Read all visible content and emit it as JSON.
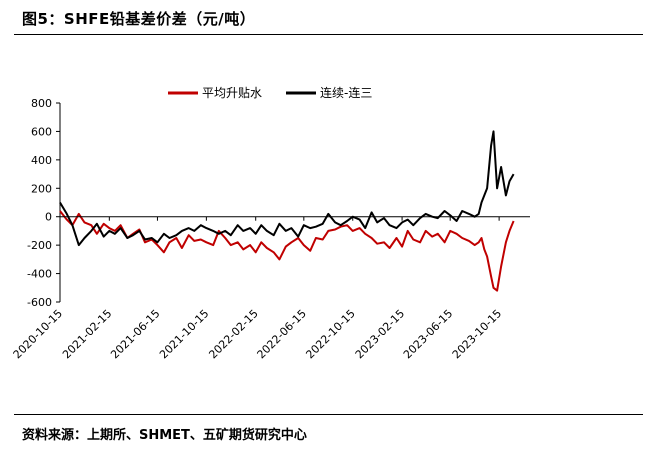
{
  "title": "图5：SHFE铅基差价差（元/吨）",
  "source": "资料来源：上期所、SHMET、五矿期货研究中心",
  "colors": {
    "series1": "#c00000",
    "series2": "#000000"
  },
  "chart_data": {
    "type": "line",
    "title": "",
    "xlabel": "",
    "ylabel": "",
    "ylim": [
      -600,
      800
    ],
    "yticks": [
      800,
      600,
      400,
      200,
      0,
      -200,
      -400,
      -600
    ],
    "ytick_labels": [
      "800",
      "600",
      "400",
      "200",
      "0",
      "-200",
      "-400",
      "-600"
    ],
    "xlim": [
      "2020-10-15",
      "2023-12-31"
    ],
    "xticks": [
      "2020-10-15",
      "2021-02-15",
      "2021-06-15",
      "2021-10-15",
      "2022-02-15",
      "2022-06-15",
      "2022-10-15",
      "2023-02-15",
      "2023-06-15",
      "2023-10-15"
    ],
    "legend_position": "top-center",
    "grid": false,
    "series": [
      {
        "name": "平均升贴水",
        "x": [
          "2020-10-15",
          "2020-11-01",
          "2020-11-15",
          "2020-12-01",
          "2020-12-15",
          "2021-01-01",
          "2021-01-15",
          "2021-02-01",
          "2021-02-15",
          "2021-03-01",
          "2021-03-15",
          "2021-04-01",
          "2021-04-15",
          "2021-05-01",
          "2021-05-15",
          "2021-06-01",
          "2021-06-15",
          "2021-07-01",
          "2021-07-15",
          "2021-08-01",
          "2021-08-15",
          "2021-09-01",
          "2021-09-15",
          "2021-10-01",
          "2021-10-15",
          "2021-11-01",
          "2021-11-15",
          "2021-12-01",
          "2021-12-15",
          "2022-01-01",
          "2022-01-15",
          "2022-02-01",
          "2022-02-15",
          "2022-03-01",
          "2022-03-15",
          "2022-04-01",
          "2022-04-15",
          "2022-05-01",
          "2022-05-15",
          "2022-06-01",
          "2022-06-15",
          "2022-07-01",
          "2022-07-15",
          "2022-08-01",
          "2022-08-15",
          "2022-09-01",
          "2022-09-15",
          "2022-10-01",
          "2022-10-15",
          "2022-11-01",
          "2022-11-15",
          "2022-12-01",
          "2022-12-15",
          "2023-01-01",
          "2023-01-15",
          "2023-02-01",
          "2023-02-15",
          "2023-03-01",
          "2023-03-15",
          "2023-04-01",
          "2023-04-15",
          "2023-05-01",
          "2023-05-15",
          "2023-06-01",
          "2023-06-15",
          "2023-07-01",
          "2023-07-15",
          "2023-08-01",
          "2023-08-15",
          "2023-08-25",
          "2023-09-01",
          "2023-09-08",
          "2023-09-15",
          "2023-09-25",
          "2023-10-01",
          "2023-10-10",
          "2023-10-20",
          "2023-11-01",
          "2023-11-10",
          "2023-11-20"
        ],
        "values": [
          40,
          -20,
          -60,
          20,
          -40,
          -60,
          -120,
          -50,
          -80,
          -100,
          -60,
          -150,
          -120,
          -90,
          -180,
          -160,
          -200,
          -250,
          -180,
          -150,
          -220,
          -130,
          -170,
          -160,
          -180,
          -200,
          -100,
          -150,
          -200,
          -180,
          -230,
          -200,
          -250,
          -180,
          -220,
          -250,
          -300,
          -210,
          -180,
          -150,
          -200,
          -240,
          -150,
          -160,
          -100,
          -90,
          -70,
          -60,
          -100,
          -80,
          -120,
          -150,
          -190,
          -180,
          -220,
          -150,
          -210,
          -100,
          -160,
          -180,
          -100,
          -140,
          -120,
          -180,
          -100,
          -120,
          -150,
          -170,
          -200,
          -180,
          -150,
          -230,
          -280,
          -420,
          -500,
          -520,
          -350,
          -180,
          -100,
          -30
        ]
      },
      {
        "name": "连续-连三",
        "x": [
          "2020-10-15",
          "2020-11-01",
          "2020-11-15",
          "2020-12-01",
          "2020-12-15",
          "2021-01-01",
          "2021-01-15",
          "2021-02-01",
          "2021-02-15",
          "2021-03-01",
          "2021-03-15",
          "2021-04-01",
          "2021-04-15",
          "2021-05-01",
          "2021-05-15",
          "2021-06-01",
          "2021-06-15",
          "2021-07-01",
          "2021-07-15",
          "2021-08-01",
          "2021-08-15",
          "2021-09-01",
          "2021-09-15",
          "2021-10-01",
          "2021-10-15",
          "2021-11-01",
          "2021-11-15",
          "2021-12-01",
          "2021-12-15",
          "2022-01-01",
          "2022-01-15",
          "2022-02-01",
          "2022-02-15",
          "2022-03-01",
          "2022-03-15",
          "2022-04-01",
          "2022-04-15",
          "2022-05-01",
          "2022-05-15",
          "2022-06-01",
          "2022-06-15",
          "2022-07-01",
          "2022-07-15",
          "2022-08-01",
          "2022-08-15",
          "2022-09-01",
          "2022-09-15",
          "2022-10-01",
          "2022-10-15",
          "2022-11-01",
          "2022-11-15",
          "2022-12-01",
          "2022-12-15",
          "2023-01-01",
          "2023-01-15",
          "2023-02-01",
          "2023-02-15",
          "2023-03-01",
          "2023-03-15",
          "2023-04-01",
          "2023-04-15",
          "2023-05-01",
          "2023-05-15",
          "2023-06-01",
          "2023-06-15",
          "2023-07-01",
          "2023-07-15",
          "2023-08-01",
          "2023-08-15",
          "2023-08-25",
          "2023-09-01",
          "2023-09-08",
          "2023-09-15",
          "2023-09-25",
          "2023-10-01",
          "2023-10-10",
          "2023-10-20",
          "2023-11-01",
          "2023-11-10",
          "2023-11-20"
        ],
        "values": [
          100,
          20,
          -60,
          -200,
          -150,
          -100,
          -50,
          -140,
          -100,
          -120,
          -80,
          -150,
          -130,
          -100,
          -160,
          -150,
          -180,
          -120,
          -150,
          -130,
          -100,
          -80,
          -100,
          -60,
          -80,
          -100,
          -120,
          -100,
          -130,
          -60,
          -100,
          -80,
          -120,
          -60,
          -100,
          -130,
          -50,
          -100,
          -80,
          -140,
          -60,
          -80,
          -70,
          -50,
          20,
          -40,
          -60,
          -30,
          0,
          -20,
          -80,
          30,
          -40,
          -10,
          -60,
          -80,
          -40,
          -20,
          -60,
          -10,
          20,
          0,
          -10,
          40,
          10,
          -30,
          40,
          20,
          0,
          20,
          100,
          150,
          200,
          500,
          600,
          200,
          350,
          150,
          250,
          300
        ]
      }
    ]
  }
}
